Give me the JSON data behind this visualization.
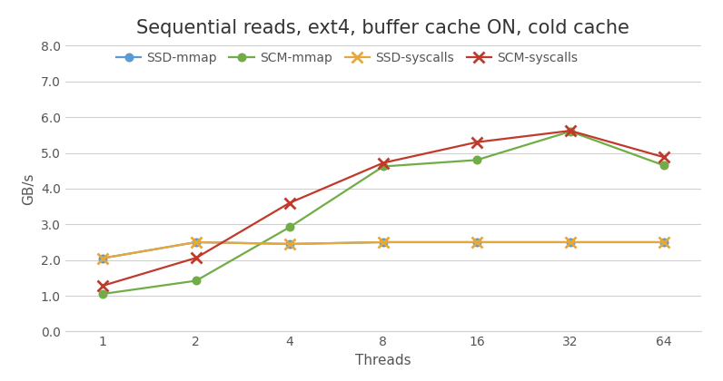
{
  "title": "Sequential reads, ext4, buffer cache ON, cold cache",
  "xlabel": "Threads",
  "ylabel": "GB/s",
  "x_values": [
    1,
    2,
    4,
    8,
    16,
    32,
    64
  ],
  "series": {
    "SSD-mmap": {
      "y": [
        2.05,
        2.5,
        2.45,
        2.5,
        2.5,
        2.5,
        2.5
      ],
      "color": "#5b9bd5",
      "marker": "o",
      "linestyle": "-"
    },
    "SCM-mmap": {
      "y": [
        1.05,
        1.42,
        2.92,
        4.62,
        4.8,
        5.6,
        4.65
      ],
      "color": "#70ad47",
      "marker": "o",
      "linestyle": "-"
    },
    "SSD-syscalls": {
      "y": [
        2.05,
        2.5,
        2.45,
        2.5,
        2.5,
        2.5,
        2.5
      ],
      "color": "#e8a838",
      "marker": "x",
      "linestyle": "-"
    },
    "SCM-syscalls": {
      "y": [
        1.28,
        2.06,
        3.6,
        4.72,
        5.3,
        5.62,
        4.88
      ],
      "color": "#c0392b",
      "marker": "x",
      "linestyle": "-"
    }
  },
  "ylim": [
    0.0,
    8.0
  ],
  "yticks": [
    0.0,
    1.0,
    2.0,
    3.0,
    4.0,
    5.0,
    6.0,
    7.0,
    8.0
  ],
  "background_color": "#ffffff",
  "grid_color": "#d0d0d0",
  "title_fontsize": 15,
  "axis_label_fontsize": 11,
  "legend_fontsize": 10,
  "tick_fontsize": 10
}
